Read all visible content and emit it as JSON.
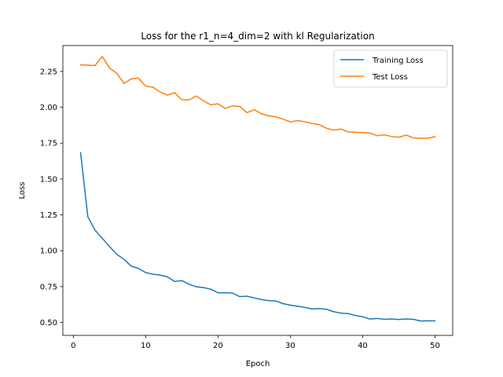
{
  "chart_data": {
    "type": "line",
    "title": "Loss for the r1_n=4_dim=2 with kl Regularization",
    "xlabel": "Epoch",
    "ylabel": "Loss",
    "xlim": [
      -1.45,
      52.45
    ],
    "ylim": [
      0.41,
      2.43
    ],
    "xticks": [
      0,
      10,
      20,
      30,
      40,
      50
    ],
    "yticks": [
      0.5,
      0.75,
      1.0,
      1.25,
      1.5,
      1.75,
      2.0,
      2.25
    ],
    "grid": false,
    "legend_position": "top-right",
    "x": [
      1,
      2,
      3,
      4,
      5,
      6,
      7,
      8,
      9,
      10,
      11,
      12,
      13,
      14,
      15,
      16,
      17,
      18,
      19,
      20,
      21,
      22,
      23,
      24,
      25,
      26,
      27,
      28,
      29,
      30,
      31,
      32,
      33,
      34,
      35,
      36,
      37,
      38,
      39,
      40,
      41,
      42,
      43,
      44,
      45,
      46,
      47,
      48,
      49,
      50
    ],
    "series": [
      {
        "name": "Training Loss",
        "color": "#1f77b4",
        "values": [
          1.684,
          1.237,
          1.143,
          1.087,
          1.029,
          0.975,
          0.94,
          0.893,
          0.876,
          0.848,
          0.836,
          0.83,
          0.818,
          0.786,
          0.792,
          0.766,
          0.749,
          0.743,
          0.732,
          0.707,
          0.707,
          0.705,
          0.68,
          0.683,
          0.671,
          0.66,
          0.652,
          0.65,
          0.631,
          0.621,
          0.613,
          0.605,
          0.594,
          0.597,
          0.592,
          0.575,
          0.565,
          0.562,
          0.549,
          0.54,
          0.524,
          0.528,
          0.522,
          0.524,
          0.521,
          0.524,
          0.522,
          0.51,
          0.512,
          0.511
        ]
      },
      {
        "name": "Test Loss",
        "color": "#ff7f0e",
        "values": [
          2.295,
          2.293,
          2.291,
          2.354,
          2.273,
          2.237,
          2.166,
          2.198,
          2.203,
          2.147,
          2.14,
          2.106,
          2.085,
          2.101,
          2.052,
          2.051,
          2.078,
          2.044,
          2.017,
          2.024,
          1.991,
          2.01,
          2.006,
          1.962,
          1.983,
          1.955,
          1.94,
          1.933,
          1.917,
          1.898,
          1.907,
          1.899,
          1.887,
          1.879,
          1.853,
          1.841,
          1.848,
          1.828,
          1.826,
          1.823,
          1.82,
          1.802,
          1.808,
          1.796,
          1.791,
          1.806,
          1.787,
          1.784,
          1.784,
          1.795
        ]
      }
    ]
  }
}
